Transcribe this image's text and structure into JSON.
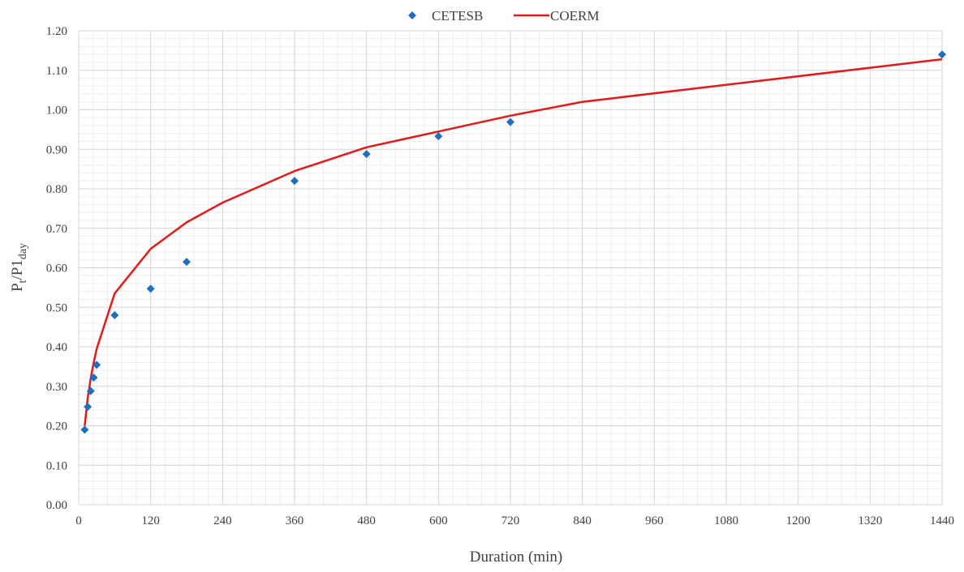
{
  "chart_data": {
    "type": "line",
    "xlabel": "Duration (min)",
    "ylabel": {
      "main": "P",
      "sub1": "t",
      "mid": "/P1",
      "sub2": "day"
    },
    "xlim": [
      0,
      1440
    ],
    "ylim": [
      0,
      1.2
    ],
    "x_ticks": [
      0,
      120,
      240,
      360,
      480,
      600,
      720,
      840,
      960,
      1080,
      1200,
      1320,
      1440
    ],
    "x_tick_labels": [
      "0",
      "120",
      "240",
      "360",
      "480",
      "600",
      "720",
      "840",
      "960",
      "1080",
      "1200",
      "1320",
      "1440"
    ],
    "y_ticks": [
      0,
      0.1,
      0.2,
      0.3,
      0.4,
      0.5,
      0.6,
      0.7,
      0.8,
      0.9,
      1.0,
      1.1,
      1.2
    ],
    "y_tick_labels": [
      "0.00",
      "0.10",
      "0.20",
      "0.30",
      "0.40",
      "0.50",
      "0.60",
      "0.70",
      "0.80",
      "0.90",
      "1.00",
      "1.10",
      "1.20"
    ],
    "grid": {
      "major": true,
      "minor": true
    },
    "legend_position": "top-center",
    "series": [
      {
        "name": "CETESB",
        "kind": "scatter",
        "marker": "diamond",
        "color": "#1f6fbf",
        "points": [
          [
            10,
            0.19
          ],
          [
            15,
            0.248
          ],
          [
            20,
            0.288
          ],
          [
            25,
            0.322
          ],
          [
            30,
            0.354
          ],
          [
            60,
            0.48
          ],
          [
            120,
            0.547
          ],
          [
            180,
            0.615
          ],
          [
            360,
            0.82
          ],
          [
            480,
            0.888
          ],
          [
            600,
            0.933
          ],
          [
            720,
            0.969
          ],
          [
            1440,
            1.14
          ]
        ]
      },
      {
        "name": "COERM",
        "kind": "line",
        "color": "#e31a1c",
        "points": [
          [
            10,
            0.2
          ],
          [
            15,
            0.27
          ],
          [
            20,
            0.32
          ],
          [
            25,
            0.36
          ],
          [
            30,
            0.395
          ],
          [
            60,
            0.535
          ],
          [
            120,
            0.648
          ],
          [
            180,
            0.715
          ],
          [
            240,
            0.765
          ],
          [
            360,
            0.845
          ],
          [
            480,
            0.905
          ],
          [
            600,
            0.945
          ],
          [
            720,
            0.985
          ],
          [
            840,
            1.02
          ],
          [
            1440,
            1.128
          ]
        ]
      }
    ]
  }
}
